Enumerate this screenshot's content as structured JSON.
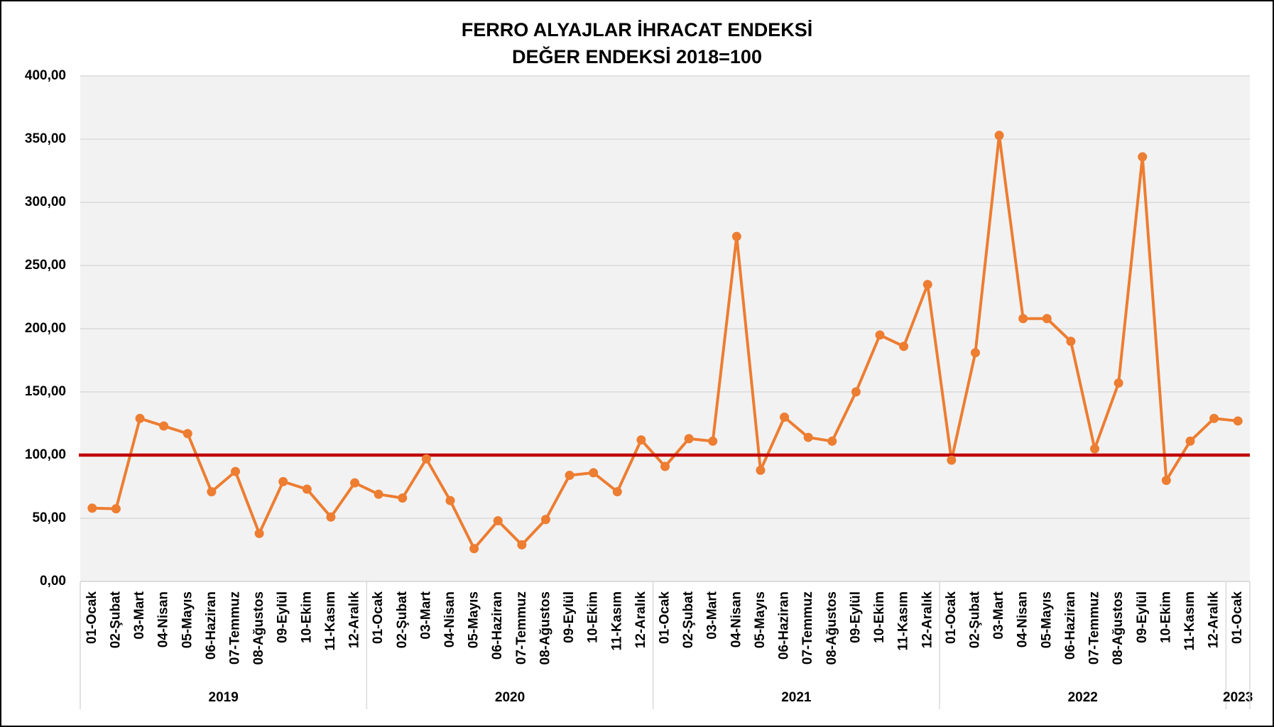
{
  "chart_data": {
    "type": "line",
    "title": "FERRO ALYAJLAR İHRACAT ENDEKSİ",
    "subtitle": "DEĞER ENDEKSİ 2018=100",
    "categories": [
      "01-Ocak",
      "02-Şubat",
      "03-Mart",
      "04-Nisan",
      "05-Mayıs",
      "06-Haziran",
      "07-Temmuz",
      "08-Ağustos",
      "09-Eylül",
      "10-Ekim",
      "11-Kasım",
      "12-Aralık",
      "01-Ocak",
      "02-Şubat",
      "03-Mart",
      "04-Nisan",
      "05-Mayıs",
      "06-Haziran",
      "07-Temmuz",
      "08-Ağustos",
      "09-Eylül",
      "10-Ekim",
      "11-Kasım",
      "12-Aralık",
      "01-Ocak",
      "02-Şubat",
      "03-Mart",
      "04-Nisan",
      "05-Mayıs",
      "06-Haziran",
      "07-Temmuz",
      "08-Ağustos",
      "09-Eylül",
      "10-Ekim",
      "11-Kasım",
      "12-Aralık",
      "01-Ocak",
      "02-Şubat",
      "03-Mart",
      "04-Nisan",
      "05-Mayıs",
      "06-Haziran",
      "07-Temmuz",
      "08-Ağustos",
      "09-Eylül",
      "10-Ekim",
      "11-Kasım",
      "12-Aralık",
      "01-Ocak"
    ],
    "groups": [
      {
        "name": "2019",
        "categories": 12
      },
      {
        "name": "2020",
        "categories": 12
      },
      {
        "name": "2021",
        "categories": 12
      },
      {
        "name": "2022",
        "categories": 12
      },
      {
        "name": "2023",
        "categories": 1
      }
    ],
    "values": [
      58,
      57.5,
      129,
      123,
      117,
      71,
      87,
      38,
      79,
      73,
      51,
      78,
      69,
      66,
      97,
      64,
      26,
      48,
      29,
      49,
      84,
      86,
      71,
      112,
      91,
      113,
      111,
      273,
      88,
      130,
      114,
      111,
      150,
      195,
      186,
      235,
      96,
      181,
      353,
      208,
      208,
      190,
      105,
      157,
      336,
      80,
      111,
      129,
      127
    ],
    "color": "#ed7d31",
    "reference_line": {
      "value": 100,
      "color": "#c00000"
    },
    "ylim": [
      0,
      400
    ],
    "yticks": [
      {
        "value": 0,
        "label": "0,00"
      },
      {
        "value": 50,
        "label": "50,00"
      },
      {
        "value": 100,
        "label": "100,00"
      },
      {
        "value": 150,
        "label": "150,00"
      },
      {
        "value": 200,
        "label": "200,00"
      },
      {
        "value": 250,
        "label": "250,00"
      },
      {
        "value": 300,
        "label": "300,00"
      },
      {
        "value": 350,
        "label": "350,00"
      },
      {
        "value": 400,
        "label": "400,00"
      }
    ],
    "grid": true
  }
}
